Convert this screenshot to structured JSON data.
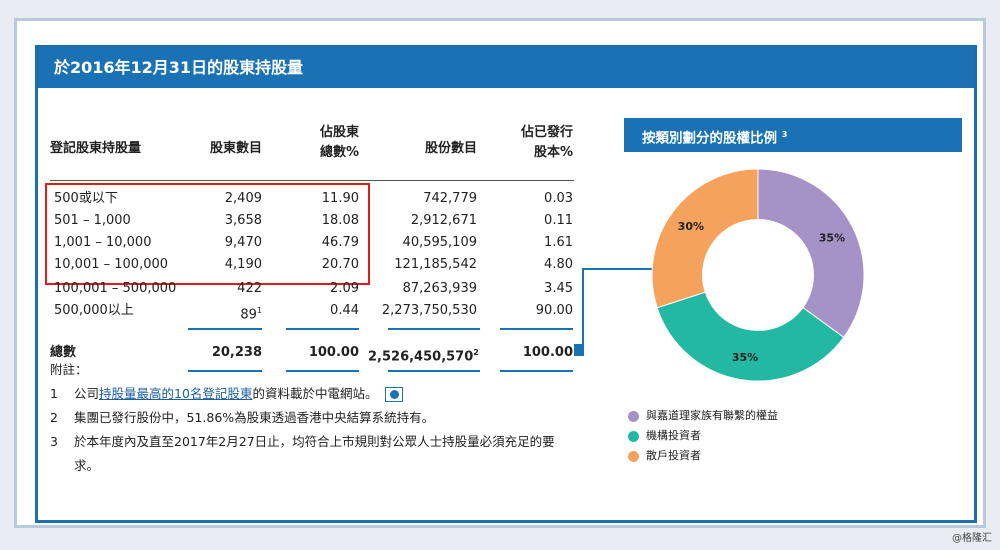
{
  "title": "於2016年12月31日的股東持股量",
  "table": {
    "headers": [
      "登記股東持股量",
      "股東數目",
      "佔股東\n總數%",
      "股份數目",
      "佔已發行\n股本%"
    ],
    "header_lines": {
      "c0": "登記股東持股量",
      "c1": "股東數目",
      "c2a": "佔股東",
      "c2b": "總數%",
      "c3": "股份數目",
      "c4a": "佔已發行",
      "c4b": "股本%"
    },
    "rows": [
      [
        "500或以下",
        "2,409",
        "11.90",
        "742,779",
        "0.03"
      ],
      [
        "501 – 1,000",
        "3,658",
        "18.08",
        "2,912,671",
        "0.11"
      ],
      [
        "1,001 – 10,000",
        "9,470",
        "46.79",
        "40,595,109",
        "1.61"
      ],
      [
        "10,001 – 100,000",
        "4,190",
        "20.70",
        "121,185,542",
        "4.80"
      ],
      [
        "100,001 – 500,000",
        "422",
        "2.09",
        "87,263,939",
        "3.45"
      ],
      [
        "500,000以上",
        "89",
        "0.44",
        "2,273,750,530",
        "90.00"
      ]
    ],
    "row6_sup": "1",
    "total": {
      "label": "總數",
      "holders": "20,238",
      "holders_pct": "100.00",
      "shares": "2,526,450,570",
      "shares_sup": "2",
      "shares_pct": "100.00"
    }
  },
  "notes": {
    "heading": "附註：",
    "n1_num": "1",
    "n1_pre": "公司",
    "n1_link": "持股量最高的10名登記股東",
    "n1_post": "的資料載於中電網站。",
    "n2_num": "2",
    "n2_text": "集團已發行股份中，51.86%為股東透過香港中央結算系統持有。",
    "n3_num": "3",
    "n3_text": "於本年度內及直至2017年2月27日止，均符合上市規則對公眾人士持股量必須充足的要求。"
  },
  "pie_panel": {
    "title": "按類別劃分的股權比例",
    "title_sup": "3",
    "slices": [
      {
        "label": "與嘉道理家族有聯繫的權益",
        "value": 35,
        "display": "35%",
        "color": "#a592c7"
      },
      {
        "label": "機構投資者",
        "value": 35,
        "display": "35%",
        "color": "#22b8a2"
      },
      {
        "label": "散戶投資者",
        "value": 30,
        "display": "30%",
        "color": "#f5a25d"
      }
    ]
  },
  "credit": "@格隆汇"
}
